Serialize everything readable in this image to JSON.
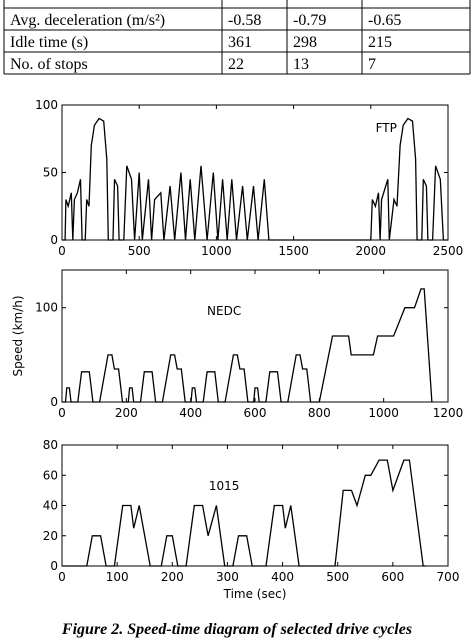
{
  "table": {
    "rows": [
      [
        "Avg. deceleration (m/s²)",
        "-0.58",
        "-0.79",
        "-0.65"
      ],
      [
        "Idle time (s)",
        "361",
        "298",
        "215"
      ],
      [
        "No. of stops",
        "22",
        "13",
        "7"
      ]
    ]
  },
  "chart_data": [
    {
      "type": "line",
      "annotation": "FTP",
      "x": [
        0,
        20,
        25,
        40,
        60,
        70,
        80,
        100,
        120,
        130,
        150,
        160,
        175,
        190,
        210,
        240,
        270,
        290,
        300,
        330,
        340,
        360,
        370,
        400,
        420,
        450,
        470,
        500,
        520,
        560,
        580,
        600,
        640,
        660,
        700,
        730,
        770,
        800,
        830,
        860,
        900,
        940,
        980,
        1010,
        1040,
        1070,
        1100,
        1130,
        1170,
        1200,
        1240,
        1270,
        1310,
        1340,
        1370,
        2000,
        2010,
        2030,
        2050,
        2060,
        2070,
        2110,
        2120,
        2150,
        2170,
        2190,
        2210,
        2240,
        2270,
        2290,
        2300,
        2330,
        2340,
        2360,
        2370,
        2400,
        2420,
        2450,
        2470,
        2500
      ],
      "series": [
        {
          "color": "#000000",
          "values": [
            0,
            0,
            30,
            25,
            35,
            0,
            30,
            35,
            45,
            0,
            0,
            30,
            25,
            70,
            85,
            90,
            88,
            60,
            0,
            0,
            45,
            40,
            0,
            0,
            55,
            45,
            0,
            50,
            0,
            45,
            0,
            30,
            35,
            0,
            40,
            0,
            50,
            0,
            45,
            0,
            55,
            0,
            50,
            0,
            45,
            0,
            45,
            0,
            40,
            0,
            40,
            0,
            45,
            0,
            0,
            0,
            30,
            25,
            35,
            0,
            30,
            45,
            0,
            30,
            25,
            70,
            85,
            90,
            88,
            60,
            0,
            0,
            45,
            40,
            0,
            0,
            55,
            45,
            0,
            0
          ]
        }
      ],
      "xlim": [
        0,
        2500
      ],
      "xticks": [
        0,
        500,
        1000,
        1500,
        2000,
        2500
      ],
      "ylim": [
        0,
        100
      ],
      "yticks": [
        0,
        50,
        100
      ]
    },
    {
      "type": "line",
      "annotation": "NEDC",
      "ylabel": "Speed (km/h)",
      "x": [
        0,
        11,
        15,
        23,
        28,
        49,
        61,
        85,
        96,
        117,
        143,
        155,
        163,
        176,
        188,
        195,
        206,
        210,
        218,
        223,
        244,
        256,
        280,
        291,
        312,
        338,
        350,
        358,
        371,
        383,
        390,
        401,
        405,
        413,
        418,
        439,
        451,
        475,
        486,
        507,
        533,
        545,
        553,
        566,
        578,
        585,
        596,
        600,
        608,
        613,
        634,
        646,
        670,
        681,
        702,
        728,
        740,
        748,
        761,
        773,
        780,
        800,
        841,
        891,
        899,
        968,
        981,
        1031,
        1066,
        1096,
        1116,
        1126,
        1150
      ],
      "series": [
        {
          "color": "#000000",
          "values": [
            0,
            0,
            15,
            15,
            0,
            0,
            32,
            32,
            0,
            0,
            50,
            50,
            35,
            35,
            0,
            0,
            0,
            15,
            15,
            0,
            0,
            32,
            32,
            0,
            0,
            50,
            50,
            35,
            35,
            0,
            0,
            0,
            15,
            15,
            0,
            0,
            32,
            32,
            0,
            0,
            50,
            50,
            35,
            35,
            0,
            0,
            0,
            15,
            15,
            0,
            0,
            32,
            32,
            0,
            0,
            50,
            50,
            35,
            35,
            0,
            0,
            0,
            70,
            70,
            50,
            50,
            70,
            70,
            100,
            100,
            120,
            120,
            0
          ]
        }
      ],
      "xlim": [
        0,
        1200
      ],
      "xticks": [
        0,
        200,
        400,
        600,
        800,
        1000,
        1200
      ],
      "ylim": [
        0,
        140
      ],
      "yticks": [
        0,
        100
      ]
    },
    {
      "type": "line",
      "annotation": "1015",
      "xlabel": "Time (sec)",
      "x": [
        0,
        45,
        55,
        70,
        80,
        95,
        110,
        125,
        130,
        140,
        160,
        180,
        190,
        200,
        210,
        225,
        240,
        255,
        265,
        280,
        295,
        310,
        320,
        335,
        345,
        370,
        385,
        400,
        405,
        415,
        430,
        495,
        510,
        525,
        535,
        550,
        560,
        575,
        590,
        600,
        620,
        630,
        655,
        660
      ],
      "series": [
        {
          "color": "#000000",
          "values": [
            0,
            0,
            20,
            20,
            0,
            0,
            40,
            40,
            25,
            40,
            0,
            0,
            20,
            20,
            0,
            0,
            40,
            40,
            20,
            40,
            0,
            0,
            20,
            20,
            0,
            0,
            40,
            40,
            25,
            40,
            0,
            0,
            50,
            50,
            40,
            60,
            60,
            70,
            70,
            50,
            70,
            70,
            0,
            0
          ]
        }
      ],
      "xlim": [
        0,
        700
      ],
      "xticks": [
        0,
        100,
        200,
        300,
        400,
        500,
        600,
        700
      ],
      "ylim": [
        0,
        80
      ],
      "yticks": [
        0,
        20,
        40,
        60,
        80
      ]
    }
  ],
  "caption": "Figure 2. Speed-time diagram of selected drive cycles"
}
